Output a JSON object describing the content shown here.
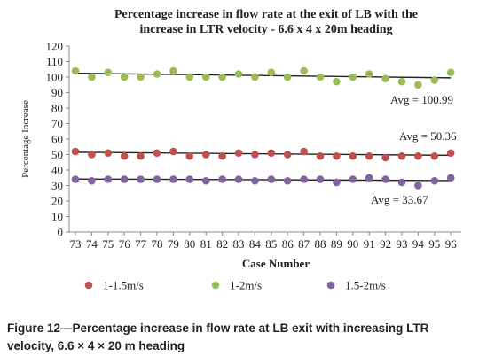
{
  "chart_data": {
    "type": "scatter",
    "title_lines": [
      "Percentage increase in flow rate at the exit  of LB with the",
      "increase in LTR velocity - 6.6 x 4 x 20m  heading"
    ],
    "xlabel": "Case Number",
    "ylabel": "Percentage Increase",
    "x": [
      73,
      74,
      75,
      76,
      77,
      78,
      79,
      80,
      81,
      82,
      83,
      84,
      85,
      86,
      87,
      88,
      89,
      90,
      91,
      92,
      93,
      94,
      95,
      96
    ],
    "ylim": [
      0,
      120
    ],
    "yticks": [
      0,
      10,
      20,
      30,
      40,
      50,
      60,
      70,
      80,
      90,
      100,
      110,
      120
    ],
    "grid": false,
    "legend_position": "bottom",
    "series": [
      {
        "name": "1-1.5m/s",
        "color": "#c0504d",
        "values": [
          52,
          50,
          51,
          49,
          49,
          51,
          52,
          49,
          50,
          49,
          51,
          50,
          51,
          50,
          52,
          49,
          49,
          49,
          49,
          48,
          49,
          49,
          49,
          51
        ],
        "trend": [
          51.5,
          49.5
        ],
        "avg_label": "Avg = 50.36"
      },
      {
        "name": "1-2m/s",
        "color": "#9bbb59",
        "values": [
          104,
          100,
          103,
          100,
          100,
          102,
          104,
          100,
          100,
          100,
          102,
          100,
          103,
          100,
          104,
          100,
          97,
          100,
          102,
          99,
          97,
          95,
          98,
          103
        ],
        "trend": [
          102.5,
          99.5
        ],
        "avg_label": "Avg = 100.99"
      },
      {
        "name": "1.5-2m/s",
        "color": "#8064a2",
        "values": [
          34,
          33,
          34,
          34,
          34,
          34,
          34,
          34,
          33,
          34,
          34,
          33,
          34,
          33,
          34,
          34,
          32,
          34,
          35,
          34,
          32,
          30,
          33,
          35
        ],
        "trend": [
          34.2,
          33.2
        ],
        "avg_label": "Avg = 33.67"
      }
    ]
  },
  "caption": "Figure 12—Percentage increase in flow rate at LB exit with increasing LTR velocity, 6.6 × 4 × 20 m heading"
}
